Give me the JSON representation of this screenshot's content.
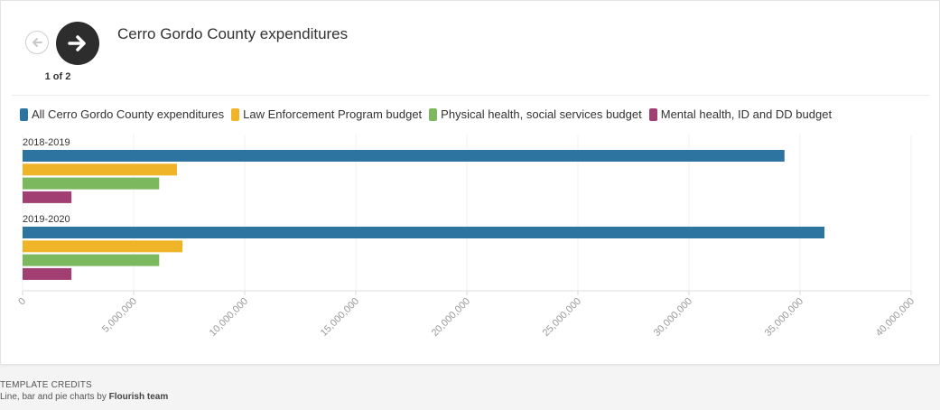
{
  "navigation": {
    "prev_icon": "arrow-left-icon",
    "next_icon": "arrow-right-icon",
    "counter": "1 of 2"
  },
  "chart_data": {
    "type": "bar",
    "orientation": "horizontal",
    "title": "Cerro Gordo County expenditures",
    "categories": [
      "2018-2019",
      "2019-2020"
    ],
    "series": [
      {
        "name": "All Cerro Gordo County expenditures",
        "color": "#2e74a0",
        "values": [
          34300000,
          36100000
        ]
      },
      {
        "name": "Law Enforcement Program budget",
        "color": "#f0b429",
        "values": [
          6950000,
          7200000
        ]
      },
      {
        "name": "Physical health, social services budget",
        "color": "#7cb85e",
        "values": [
          6150000,
          6150000
        ]
      },
      {
        "name": "Mental health, ID and DD budget",
        "color": "#a23f72",
        "values": [
          2200000,
          2200000
        ]
      }
    ],
    "xlim": [
      0,
      40000000
    ],
    "xticks": [
      "0",
      "5,000,000",
      "10,000,000",
      "15,000,000",
      "20,000,000",
      "25,000,000",
      "30,000,000",
      "35,000,000",
      "40,000,000"
    ],
    "xlabel": "",
    "ylabel": "",
    "grid": true,
    "legend": "top-left"
  },
  "credits": {
    "title": "Template credits",
    "prefix": "Line, bar and pie charts by ",
    "author": "Flourish team"
  }
}
